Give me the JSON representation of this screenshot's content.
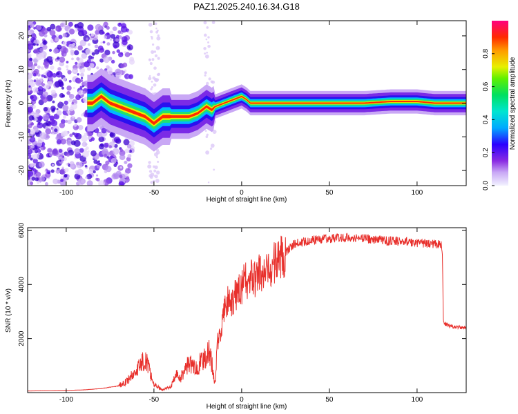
{
  "title": "PAZ1.2025.240.16.34.G18",
  "chart_data": [
    {
      "type": "heatmap",
      "xlabel": "Height of straight line (km)",
      "ylabel": "Frequency (Hz)",
      "xlim": [
        -122,
        128
      ],
      "ylim": [
        -24.5,
        24.5
      ],
      "xticks": [
        -100,
        -50,
        0,
        50,
        100
      ],
      "yticks": [
        -20,
        -10,
        0,
        10,
        20
      ],
      "colorbar": {
        "label": "Normalized spectral amplitude",
        "range": [
          0,
          1
        ],
        "ticks": [
          "0.0",
          "0.2",
          "0.4",
          "0.6",
          "0.8"
        ]
      },
      "ridge": {
        "name": "",
        "x": [
          -85,
          -80,
          -75,
          -70,
          -65,
          -60,
          -55,
          -50,
          -45,
          -40,
          -35,
          -30,
          -25,
          -20,
          -17,
          -15,
          -10,
          -5,
          0,
          3,
          5,
          10,
          15,
          20,
          30,
          50,
          70,
          85,
          100,
          110,
          115,
          128
        ],
        "y": [
          0,
          2,
          0,
          -1,
          -2,
          -3,
          -4,
          -6,
          -4,
          -4,
          -4,
          -4,
          -3,
          -1,
          -2,
          -1,
          0,
          1,
          2,
          1,
          0,
          0,
          0,
          0,
          0,
          0,
          0,
          0.5,
          0.5,
          0,
          0,
          0
        ]
      }
    },
    {
      "type": "line",
      "xlabel": "Height of straight line (km)",
      "ylabel": "SNR (10 * v/v)",
      "xlim": [
        -122,
        128
      ],
      "ylim": [
        0,
        6100
      ],
      "xticks": [
        -100,
        -50,
        0,
        50,
        100
      ],
      "yticks": [
        2000,
        4000,
        6000
      ],
      "color": "#e8302c",
      "series": [
        {
          "name": "",
          "x": [
            -122,
            -110,
            -100,
            -90,
            -80,
            -70,
            -65,
            -60,
            -57,
            -55,
            -53,
            -50,
            -45,
            -40,
            -37,
            -35,
            -32,
            -30,
            -27,
            -25,
            -22,
            -20,
            -18,
            -16,
            -15,
            -14,
            -12,
            -10,
            -8,
            -6,
            -4,
            -2,
            0,
            2,
            4,
            6,
            8,
            10,
            12,
            15,
            18,
            20,
            25,
            30,
            40,
            50,
            60,
            70,
            80,
            85,
            90,
            100,
            110,
            114,
            114.5,
            115,
            117,
            120,
            128
          ],
          "y": [
            60,
            70,
            80,
            100,
            150,
            250,
            450,
            800,
            1100,
            1300,
            900,
            300,
            100,
            250,
            700,
            500,
            900,
            1100,
            900,
            1000,
            1200,
            1400,
            1500,
            600,
            300,
            1800,
            2200,
            3000,
            3400,
            3100,
            3500,
            3800,
            3900,
            4200,
            4000,
            4300,
            4100,
            4500,
            4300,
            4400,
            4700,
            4900,
            5200,
            5500,
            5650,
            5700,
            5750,
            5700,
            5650,
            5600,
            5600,
            5550,
            5500,
            5450,
            5000,
            2600,
            2500,
            2450,
            2400
          ]
        }
      ]
    }
  ]
}
